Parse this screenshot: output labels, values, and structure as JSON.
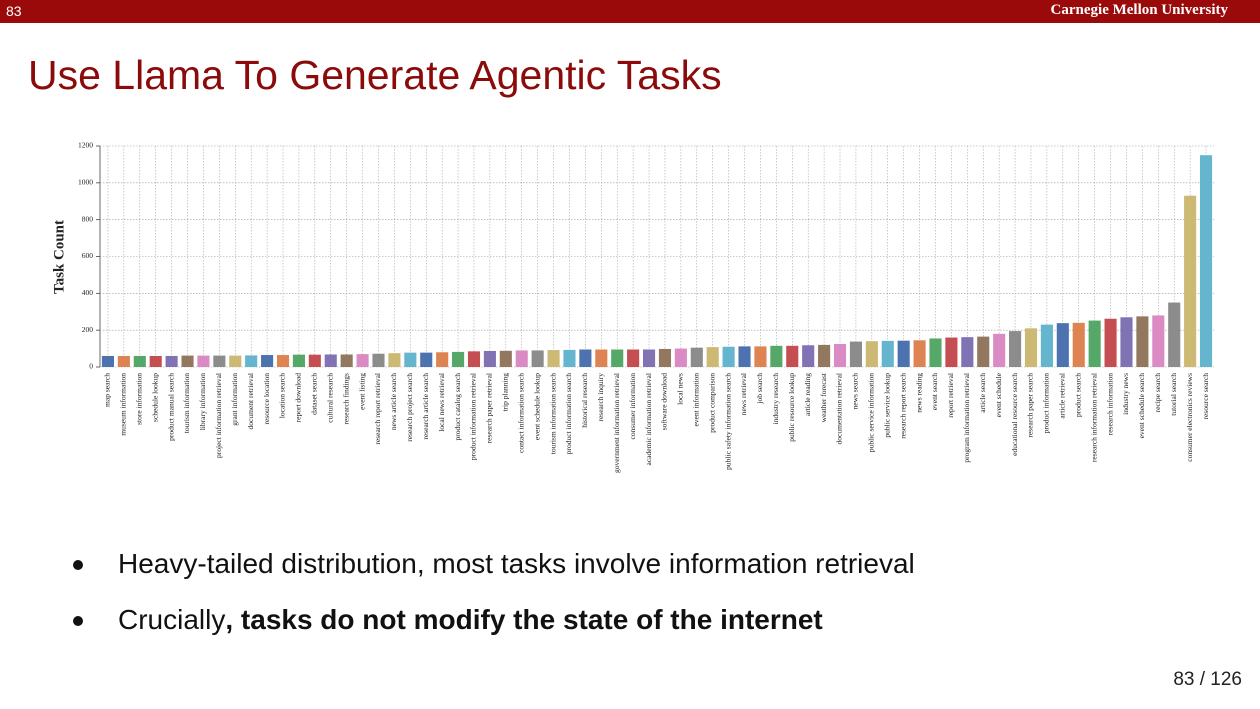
{
  "header": {
    "slide_number": "83",
    "brand": "Carnegie Mellon University"
  },
  "title": "Use Llama To Generate Agentic Tasks",
  "chart_data": {
    "type": "bar",
    "ylabel": "Task Count",
    "categories": [
      "map search",
      "museum information",
      "store information",
      "schedule lookup",
      "product manual search",
      "tourism information",
      "library information",
      "project information retrieval",
      "grant information",
      "document retrieval",
      "resource location",
      "location search",
      "report download",
      "dataset search",
      "cultural research",
      "research findings",
      "event listing",
      "research report retrieval",
      "news article search",
      "research project search",
      "research article search",
      "local news retrieval",
      "product catalog search",
      "product information retrieval",
      "research paper retrieval",
      "trip planning",
      "contact information search",
      "event schedule lookup",
      "tourism information search",
      "product information search",
      "historical research",
      "research inquiry",
      "government information retrieval",
      "consumer information",
      "academic information retrieval",
      "software download",
      "local news",
      "event information",
      "product comparison",
      "public safety information search",
      "news retrieval",
      "job search",
      "industry research",
      "public resource lookup",
      "article reading",
      "weather forecast",
      "documentation retrieval",
      "news search",
      "public service information",
      "public service lookup",
      "research report search",
      "news reading",
      "event search",
      "report retrieval",
      "program information retrieval",
      "article search",
      "event schedule",
      "educational resource search",
      "research paper search",
      "product information",
      "article retrieval",
      "product search",
      "research information retrieval",
      "research information",
      "industry news",
      "event schedule search",
      "recipe search",
      "tutorial search",
      "consumer electronics reviews",
      "resource search"
    ],
    "values": [
      60,
      60,
      60,
      60,
      60,
      62,
      62,
      62,
      62,
      63,
      65,
      65,
      67,
      67,
      68,
      68,
      70,
      72,
      75,
      78,
      78,
      80,
      82,
      85,
      87,
      88,
      90,
      90,
      92,
      93,
      95,
      95,
      95,
      95,
      95,
      98,
      100,
      105,
      108,
      110,
      112,
      112,
      115,
      115,
      118,
      120,
      125,
      138,
      140,
      142,
      143,
      145,
      155,
      160,
      162,
      165,
      180,
      195,
      210,
      230,
      238,
      240,
      252,
      262,
      270,
      275,
      280,
      350,
      930,
      1150
    ],
    "colors": [
      "#4c72b0",
      "#dd8452",
      "#55a868",
      "#c44e52",
      "#8172b3",
      "#937860",
      "#da8bc3",
      "#8c8c8c",
      "#ccb974",
      "#64b5cd"
    ],
    "ylim": [
      0,
      1200
    ],
    "yticks": [
      0,
      200,
      400,
      600,
      800,
      1000,
      1200
    ],
    "grid": true
  },
  "bullets": [
    [
      "Heavy-tailed distribution, most tasks involve information retrieval"
    ],
    [
      "Crucially",
      ", tasks do not modify the state of the internet"
    ]
  ],
  "footer": {
    "page": "83 / 126"
  }
}
